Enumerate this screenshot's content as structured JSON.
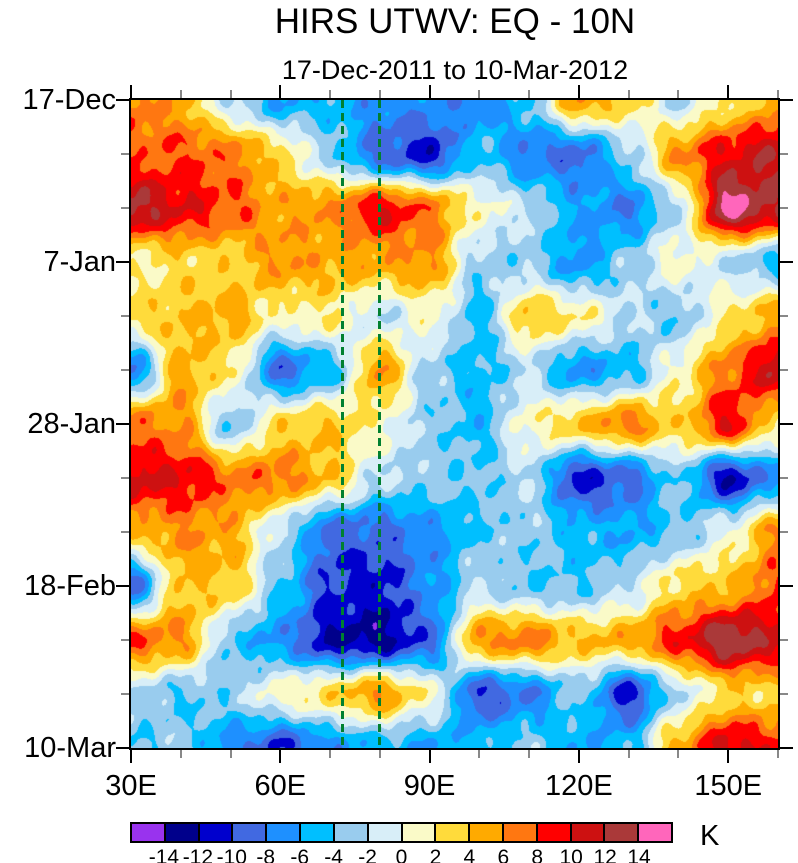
{
  "chart_data": {
    "type": "heatmap",
    "title": "HIRS UTWV: EQ - 10N",
    "subtitle": "17-Dec-2011 to 10-Mar-2012",
    "units": "K",
    "x_axis": {
      "kind": "longitude",
      "range_deg_east": [
        30,
        160
      ],
      "major_ticks": [
        {
          "lon": 30,
          "label": "30E"
        },
        {
          "lon": 60,
          "label": "60E"
        },
        {
          "lon": 90,
          "label": "90E"
        },
        {
          "lon": 120,
          "label": "120E"
        },
        {
          "lon": 150,
          "label": "150E"
        }
      ],
      "minor_tick_lons": [
        40,
        50,
        70,
        80,
        100,
        110,
        130,
        140,
        160
      ]
    },
    "y_axis": {
      "kind": "time",
      "range_days": [
        0,
        84
      ],
      "major_ticks": [
        {
          "day": 0,
          "label": "17-Dec"
        },
        {
          "day": 21,
          "label": "7-Jan"
        },
        {
          "day": 42,
          "label": "28-Jan"
        },
        {
          "day": 63,
          "label": "18-Feb"
        },
        {
          "day": 84,
          "label": "10-Mar"
        }
      ],
      "minor_tick_days": [
        7,
        14,
        28,
        35,
        49,
        56,
        70,
        77
      ]
    },
    "grid_lons": [
      30,
      40,
      50,
      60,
      70,
      80,
      90,
      100,
      110,
      120,
      130,
      140,
      150,
      160
    ],
    "grid_days": [
      0,
      7,
      14,
      21,
      28,
      35,
      42,
      49,
      56,
      63,
      70,
      77,
      84
    ],
    "values_K": [
      [
        7,
        5,
        -2,
        -6,
        -5,
        -7,
        -7,
        -8,
        -4,
        6,
        3,
        -2,
        2,
        5
      ],
      [
        7,
        8,
        7,
        3,
        -3,
        -9,
        -11,
        -4,
        -8,
        -9,
        -3,
        6,
        10,
        12
      ],
      [
        13,
        10,
        8,
        5,
        6,
        10,
        7,
        1,
        -2,
        -6,
        -8,
        -2,
        15,
        12
      ],
      [
        1,
        3,
        3,
        6,
        5,
        5,
        6,
        -3,
        -3,
        -7,
        -3,
        1,
        -2,
        -5
      ],
      [
        3,
        4,
        5,
        1,
        2,
        -2,
        1,
        -5,
        4,
        2,
        -2,
        -4,
        2,
        5
      ],
      [
        -8,
        5,
        2,
        -9,
        -5,
        6,
        -3,
        -5,
        -2,
        -7,
        -5,
        1,
        7,
        12
      ],
      [
        7,
        6,
        -4,
        3,
        4,
        1,
        -3,
        -5,
        1,
        4,
        7,
        3,
        10,
        2
      ],
      [
        11,
        10,
        7,
        7,
        4,
        -2,
        -3,
        -4,
        -2,
        -11,
        -9,
        -3,
        -12,
        -7
      ],
      [
        4,
        6,
        5,
        -2,
        -9,
        -9,
        -7,
        -4,
        -3,
        -5,
        -6,
        -4,
        0,
        6
      ],
      [
        -9,
        4,
        4,
        -4,
        -10,
        -11,
        -7,
        -2,
        -4,
        -4,
        -2,
        3,
        4,
        8
      ],
      [
        8,
        6,
        -4,
        -7,
        -12,
        -13,
        -9,
        6,
        7,
        4,
        5,
        9,
        14,
        11
      ],
      [
        -2,
        -4,
        -3,
        1,
        3,
        6,
        1,
        -10,
        -8,
        -3,
        -11,
        -2,
        3,
        3
      ],
      [
        -4,
        -3,
        -7,
        -10,
        -7,
        -5,
        -6,
        -5,
        -3,
        -6,
        -5,
        5,
        11,
        9
      ]
    ],
    "reference_lines": {
      "style": "vertical-dashed",
      "color": "#008030",
      "lons": [
        72.5,
        80
      ]
    },
    "legend": {
      "unit": "K",
      "levels": [
        -14,
        -12,
        -10,
        -8,
        -6,
        -4,
        -2,
        0,
        2,
        4,
        6,
        8,
        10,
        12,
        14
      ],
      "tick_labels": [
        "-14",
        "-12",
        "-10",
        "-8",
        "-6",
        "-4",
        "-2",
        "0",
        "2",
        "4",
        "6",
        "8",
        "10",
        "12",
        "14"
      ],
      "colors": [
        "#9933ee",
        "#00008b",
        "#0000cd",
        "#4169e1",
        "#1e90ff",
        "#00bfff",
        "#99ccee",
        "#d8eef8",
        "#fafac8",
        "#ffdb3b",
        "#ffaa00",
        "#ff7711",
        "#ff0000",
        "#cd1111",
        "#aa3939",
        "#ff66bb"
      ]
    }
  }
}
